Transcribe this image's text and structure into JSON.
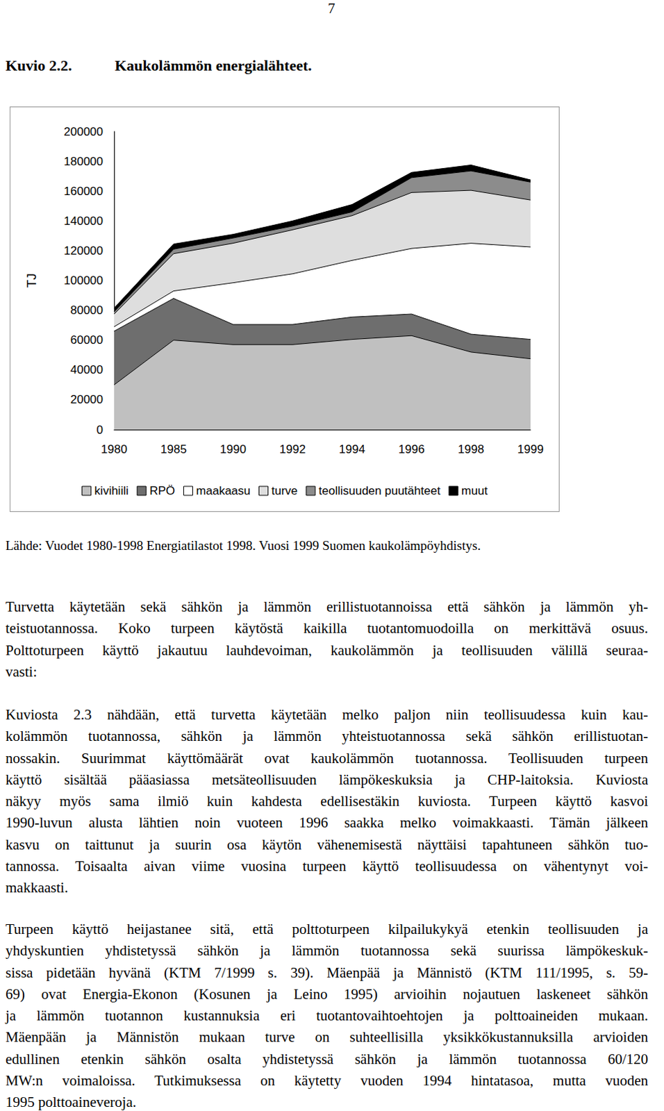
{
  "page_number": "7",
  "caption": {
    "label": "Kuvio 2.2.",
    "title": "Kaukolämmön energialähteet."
  },
  "chart_data": {
    "type": "area",
    "stacked": true,
    "y_label": "TJ",
    "categories": [
      "1980",
      "1985",
      "1990",
      "1992",
      "1994",
      "1996",
      "1998",
      "1999"
    ],
    "series": [
      {
        "name": "kivihiili",
        "color": "#c0c0c0",
        "values": [
          30000,
          60000,
          57000,
          57000,
          60500,
          63000,
          52000,
          47500
        ]
      },
      {
        "name": "RPÖ",
        "color": "#6e6e6e",
        "values": [
          36000,
          28000,
          13500,
          13500,
          15000,
          14500,
          12000,
          13000
        ]
      },
      {
        "name": "maakaasu",
        "color": "#ffffff",
        "values": [
          3000,
          5000,
          28000,
          34000,
          38000,
          44000,
          61000,
          62000
        ]
      },
      {
        "name": "turve",
        "color": "#dedede",
        "values": [
          8500,
          25000,
          26500,
          29500,
          30000,
          37500,
          35500,
          31500
        ]
      },
      {
        "name": "teollisuuden puutähteet",
        "color": "#8c8c8c",
        "values": [
          1500,
          3000,
          3500,
          2500,
          2500,
          10000,
          13000,
          12000
        ]
      },
      {
        "name": "muut",
        "color": "#000000",
        "values": [
          2500,
          3500,
          2500,
          3500,
          5000,
          3500,
          4000,
          1500
        ]
      }
    ],
    "ylim": [
      0,
      200000
    ],
    "yticks": [
      0,
      20000,
      40000,
      60000,
      80000,
      100000,
      120000,
      140000,
      160000,
      180000,
      200000
    ],
    "grid": false,
    "legend": "bottom"
  },
  "source": "Lähde: Vuodet 1980-1998 Energiatilastot 1998. Vuosi 1999 Suomen kaukolämpöyhdistys.",
  "paragraphs": [
    [
      "Turvetta käytetään sekä sähkön ja lämmön erillistuotannoissa että sähkön ja lämmön yh-",
      "teistuotannossa. Koko turpeen käytöstä kaikilla tuotantomuodoilla on merkittävä osuus.",
      "Polttoturpeen käyttö jakautuu lauhdevoiman, kaukolämmön ja teollisuuden välillä seuraa-",
      "vasti:"
    ],
    [
      "Kuviosta 2.3 nähdään, että turvetta käytetään melko paljon niin teollisuudessa kuin kau-",
      "kolämmön tuotannossa, sähkön ja lämmön yhteistuotannossa sekä sähkön erillistuotan-",
      "nossakin. Suurimmat käyttömäärät ovat kaukolämmön tuotannossa. Teollisuuden turpeen",
      "käyttö sisältää pääasiassa metsäteollisuuden lämpökeskuksia ja CHP-laitoksia. Kuviosta",
      "näkyy myös sama ilmiö kuin kahdesta edellisestäkin kuviosta. Turpeen käyttö kasvoi",
      "1990-luvun alusta lähtien noin vuoteen 1996 saakka melko voimakkaasti. Tämän jälkeen",
      "kasvu on taittunut ja suurin osa käytön vähenemisestä näyttäisi tapahtuneen sähkön tuo-",
      "tannossa. Toisaalta aivan viime vuosina turpeen käyttö teollisuudessa on vähentynyt voi-",
      "makkaasti."
    ],
    [
      "Turpeen käyttö heijastanee sitä, että polttoturpeen kilpailukykyä etenkin teollisuuden ja",
      "yhdyskuntien yhdistetyssä sähkön ja lämmön tuotannossa sekä suurissa lämpökeskuk-",
      "sissa pidetään hyvänä (KTM 7/1999 s. 39). Mäenpää ja Männistö (KTM 111/1995, s. 59-",
      "69) ovat Energia-Ekonon (Kosunen ja Leino 1995) arvioihin nojautuen laskeneet sähkön",
      "ja lämmön tuotannon kustannuksia eri tuotantovaihtoehtojen ja polttoaineiden mukaan.",
      "Mäenpään ja Männistön mukaan turve on suhteellisilla yksikkökustannuksilla arvioiden",
      "edullinen etenkin sähkön osalta yhdistetyssä sähkön ja lämmön tuotannossa 60/120",
      "MW:n voimaloissa. Tutkimuksessa on käytetty vuoden 1994 hintatasoa, mutta vuoden",
      "1995 polttoaineveroja."
    ]
  ]
}
